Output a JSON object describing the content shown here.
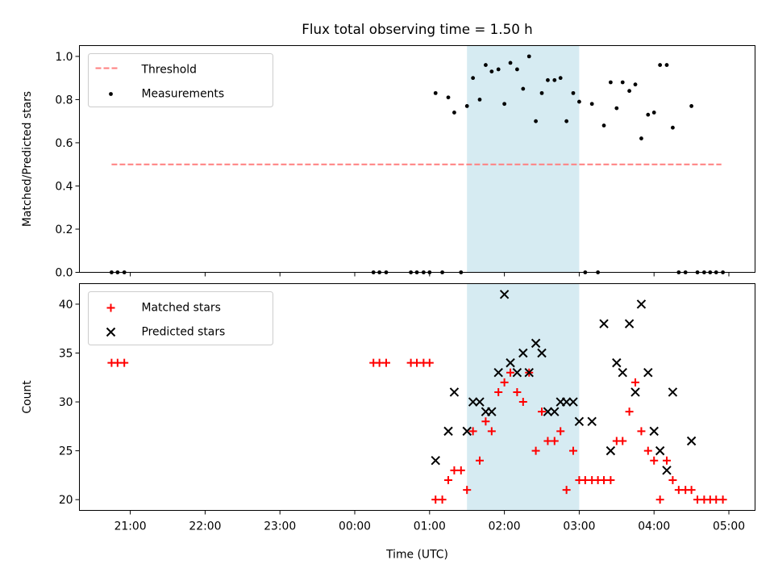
{
  "title": "Flux total observing time = 1.50 h",
  "colors": {
    "threshold": "#ff7f7f",
    "measurement": "#000000",
    "matched": "#ff0000",
    "predicted": "#000000",
    "shade": "#add8e6"
  },
  "chart_data": [
    {
      "type": "scatter",
      "ylabel": "Matched/Predicted stars",
      "ylim": [
        0,
        1.05
      ],
      "yticks": [
        0.0,
        0.2,
        0.4,
        0.6,
        0.8,
        1.0
      ],
      "ytick_labels": [
        "0.0",
        "0.2",
        "0.4",
        "0.6",
        "0.8",
        "1.0"
      ],
      "xlim": [
        20.32,
        29.35
      ],
      "shaded_region": {
        "x0": 25.5,
        "x1": 27.0
      },
      "legend": {
        "placement": "upper-left",
        "entries": [
          "Threshold",
          "Measurements"
        ]
      },
      "series": [
        {
          "name": "Threshold",
          "kind": "dashed-line",
          "x": [
            20.75,
            28.9
          ],
          "y": [
            0.5,
            0.5
          ]
        },
        {
          "name": "Measurements",
          "kind": "points",
          "x": [
            20.75,
            20.83,
            20.92,
            24.25,
            24.33,
            24.42,
            24.75,
            24.83,
            24.92,
            25.0,
            25.08,
            25.17,
            25.25,
            25.33,
            25.42,
            25.5,
            25.58,
            25.67,
            25.75,
            25.83,
            25.92,
            26.0,
            26.08,
            26.17,
            26.25,
            26.33,
            26.42,
            26.5,
            26.58,
            26.67,
            26.75,
            26.83,
            26.92,
            27.0,
            27.08,
            27.17,
            27.25,
            27.33,
            27.42,
            27.5,
            27.58,
            27.67,
            27.75,
            27.83,
            27.92,
            28.0,
            28.08,
            28.17,
            28.25,
            28.33,
            28.42,
            28.5,
            28.58,
            28.67,
            28.75,
            28.83,
            28.92
          ],
          "y": [
            0,
            0,
            0,
            0,
            0,
            0,
            0,
            0,
            0,
            0,
            0.83,
            0,
            0.81,
            0.74,
            0,
            0.77,
            0.9,
            0.8,
            0.96,
            0.93,
            0.94,
            0.78,
            0.97,
            0.94,
            0.85,
            1.0,
            0.7,
            0.83,
            0.89,
            0.89,
            0.9,
            0.7,
            0.83,
            0.79,
            0,
            0.78,
            0,
            0.68,
            0.88,
            0.76,
            0.88,
            0.84,
            0.87,
            0.62,
            0.73,
            0.74,
            0.96,
            0.96,
            0.67,
            0,
            0,
            0.77,
            0,
            0,
            0,
            0,
            0
          ]
        }
      ]
    },
    {
      "type": "scatter",
      "xlabel": "Time (UTC)",
      "ylabel": "Count",
      "ylim": [
        18.9,
        42.1
      ],
      "yticks": [
        20,
        25,
        30,
        35,
        40
      ],
      "ytick_labels": [
        "20",
        "25",
        "30",
        "35",
        "40"
      ],
      "xlim": [
        20.32,
        29.35
      ],
      "xticks": [
        21,
        22,
        23,
        24,
        25,
        26,
        27,
        28,
        29
      ],
      "xtick_labels": [
        "21:00",
        "22:00",
        "23:00",
        "00:00",
        "01:00",
        "02:00",
        "03:00",
        "04:00",
        "05:00"
      ],
      "shaded_region": {
        "x0": 25.5,
        "x1": 27.0
      },
      "legend": {
        "placement": "upper-left",
        "entries": [
          "Matched stars",
          "Predicted stars"
        ]
      },
      "series": [
        {
          "name": "Matched stars",
          "marker": "plus",
          "x": [
            20.75,
            20.83,
            20.92,
            24.25,
            24.33,
            24.42,
            24.75,
            24.83,
            24.92,
            25.0,
            25.08,
            25.17,
            25.25,
            25.33,
            25.42,
            25.5,
            25.58,
            25.67,
            25.75,
            25.83,
            25.92,
            26.0,
            26.08,
            26.17,
            26.25,
            26.33,
            26.42,
            26.5,
            26.58,
            26.67,
            26.75,
            26.83,
            26.92,
            27.0,
            27.08,
            27.17,
            27.25,
            27.33,
            27.42,
            27.5,
            27.58,
            27.67,
            27.75,
            27.83,
            27.92,
            28.0,
            28.08,
            28.17,
            28.25,
            28.33,
            28.42,
            28.5,
            28.58,
            28.67,
            28.75,
            28.83,
            28.92
          ],
          "y": [
            34,
            34,
            34,
            34,
            34,
            34,
            34,
            34,
            34,
            34,
            20,
            20,
            22,
            23,
            23,
            21,
            27,
            24,
            28,
            27,
            31,
            32,
            33,
            31,
            30,
            33,
            25,
            29,
            26,
            26,
            27,
            21,
            25,
            22,
            22,
            22,
            22,
            22,
            22,
            26,
            26,
            29,
            32,
            27,
            25,
            24,
            20,
            24,
            22,
            21,
            21,
            21,
            20,
            20,
            20,
            20,
            20
          ]
        },
        {
          "name": "Predicted stars",
          "marker": "x",
          "x": [
            25.08,
            25.25,
            25.33,
            25.5,
            25.58,
            25.67,
            25.75,
            25.83,
            25.92,
            26.0,
            26.08,
            26.17,
            26.25,
            26.33,
            26.42,
            26.5,
            26.58,
            26.67,
            26.75,
            26.83,
            26.92,
            27.0,
            27.17,
            27.33,
            27.42,
            27.5,
            27.58,
            27.67,
            27.75,
            27.83,
            27.92,
            28.0,
            28.08,
            28.17,
            28.25,
            28.5
          ],
          "y": [
            24,
            27,
            31,
            27,
            30,
            30,
            29,
            29,
            33,
            41,
            34,
            33,
            35,
            33,
            36,
            35,
            29,
            29,
            30,
            30,
            30,
            28,
            28,
            38,
            25,
            34,
            33,
            38,
            31,
            40,
            33,
            27,
            25,
            23,
            31,
            26
          ]
        }
      ]
    }
  ]
}
